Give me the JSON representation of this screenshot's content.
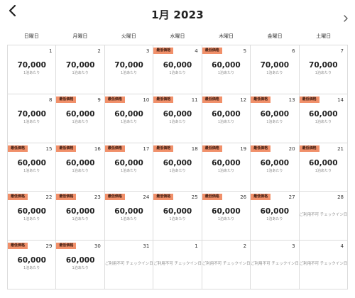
{
  "header": {
    "title": "1月 2023",
    "prev_icon": "chevron-left-icon",
    "next_icon": "chevron-right-icon"
  },
  "weekdays": [
    "日曜日",
    "月曜日",
    "火曜日",
    "水曜日",
    "木曜日",
    "金曜日",
    "土曜日"
  ],
  "colors": {
    "badge": "#f1906a",
    "grid_line": "#dcdcdc",
    "muted_text": "#8a8a8a"
  },
  "days": [
    {
      "day": "1",
      "price": "70,000",
      "unit": "1泊あたり"
    },
    {
      "day": "2",
      "price": "70,000",
      "unit": "1泊あたり"
    },
    {
      "day": "3",
      "price": "70,000",
      "unit": "1泊あたり"
    },
    {
      "day": "4",
      "price": "60,000",
      "unit": "1泊あたり",
      "badge": "最低価格"
    },
    {
      "day": "5",
      "price": "60,000",
      "unit": "1泊あたり",
      "badge": "最低価格"
    },
    {
      "day": "6",
      "price": "70,000",
      "unit": "1泊あたり"
    },
    {
      "day": "7",
      "price": "70,000",
      "unit": "1泊あたり"
    },
    {
      "day": "8",
      "price": "70,000",
      "unit": "1泊あたり"
    },
    {
      "day": "9",
      "price": "60,000",
      "unit": "1泊あたり",
      "badge": "最低価格"
    },
    {
      "day": "10",
      "price": "60,000",
      "unit": "1泊あたり",
      "badge": "最低価格"
    },
    {
      "day": "11",
      "price": "60,000",
      "unit": "1泊あたり",
      "badge": "最低価格"
    },
    {
      "day": "12",
      "price": "60,000",
      "unit": "1泊あたり",
      "badge": "最低価格"
    },
    {
      "day": "13",
      "price": "60,000",
      "unit": "1泊あたり",
      "badge": "最低価格"
    },
    {
      "day": "14",
      "price": "60,000",
      "unit": "1泊あたり",
      "badge": "最低価格"
    },
    {
      "day": "15",
      "price": "60,000",
      "unit": "1泊あたり",
      "badge": "最低価格"
    },
    {
      "day": "16",
      "price": "60,000",
      "unit": "1泊あたり",
      "badge": "最低価格"
    },
    {
      "day": "17",
      "price": "60,000",
      "unit": "1泊あたり",
      "badge": "最低価格"
    },
    {
      "day": "18",
      "price": "60,000",
      "unit": "1泊あたり",
      "badge": "最低価格"
    },
    {
      "day": "19",
      "price": "60,000",
      "unit": "1泊あたり",
      "badge": "最低価格"
    },
    {
      "day": "20",
      "price": "60,000",
      "unit": "1泊あたり",
      "badge": "最低価格"
    },
    {
      "day": "21",
      "price": "60,000",
      "unit": "1泊あたり",
      "badge": "最低価格"
    },
    {
      "day": "22",
      "price": "60,000",
      "unit": "1泊あたり",
      "badge": "最低価格"
    },
    {
      "day": "23",
      "price": "60,000",
      "unit": "1泊あたり",
      "badge": "最低価格"
    },
    {
      "day": "24",
      "price": "60,000",
      "unit": "1泊あたり",
      "badge": "最低価格"
    },
    {
      "day": "25",
      "price": "60,000",
      "unit": "1泊あたり",
      "badge": "最低価格"
    },
    {
      "day": "26",
      "price": "60,000",
      "unit": "1泊あたり",
      "badge": "最低価格"
    },
    {
      "day": "27",
      "price": "60,000",
      "unit": "1泊あたり",
      "badge": "最低価格"
    },
    {
      "day": "28",
      "note": "ご利用不可 チェックイン日",
      "muted": true
    },
    {
      "day": "29",
      "price": "60,000",
      "unit": "1泊あたり",
      "badge": "最低価格"
    },
    {
      "day": "30",
      "price": "60,000",
      "unit": "1泊あたり",
      "badge": "最低価格"
    },
    {
      "day": "31",
      "note": "ご利用不可 チェックイン日",
      "muted": true
    },
    {
      "day": "1",
      "note": "ご利用不可 チェックイン日",
      "muted": true
    },
    {
      "day": "2",
      "note": "ご利用不可 チェックイン日",
      "muted": true
    },
    {
      "day": "3",
      "note": "ご利用不可 チェックイン日",
      "muted": true
    },
    {
      "day": "4",
      "note": "ご利用不可 チェックイン日",
      "muted": true
    }
  ]
}
